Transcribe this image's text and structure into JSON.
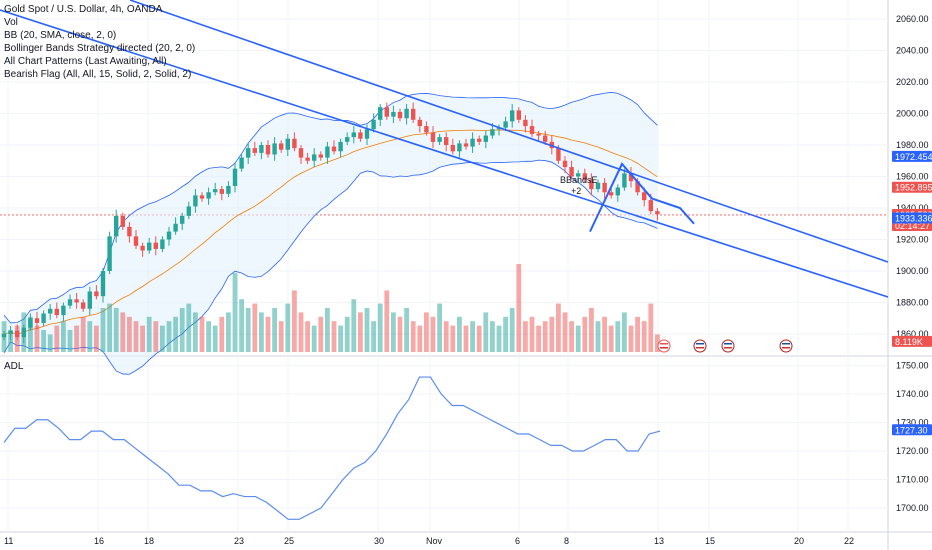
{
  "legend": {
    "title": "Gold Spot / U.S. Dollar, 4h, OANDA",
    "line2": "Vol",
    "line3": "BB (20, SMA, close, 2, 0)",
    "line4": "Bollinger Bands Strategy directed (20, 2, 0)",
    "line5": "All Chart Patterns (Last Awaiting, All)",
    "line6": "Bearish Flag (All, All, 15, Solid, 2, Solid, 2)"
  },
  "adl_label": "ADL",
  "colors": {
    "up": "#26a69a",
    "down": "#ef5350",
    "bb": "#2962ff",
    "bb_fill": "#e3f2fd",
    "basis": "#f57c00",
    "trend": "#2962ff",
    "adl": "#5b8def",
    "grid": "#f0f3fa"
  },
  "chart_data": [
    {
      "type": "candlestick",
      "symbol": "Gold Spot / U.S. Dollar",
      "timeframe": "4h",
      "yticks": [
        1860,
        1880,
        1900,
        1920,
        1940,
        1960,
        1980,
        2000,
        2020,
        2040,
        2060
      ],
      "ylim": [
        1853,
        2067
      ],
      "xticks": [
        "11",
        "16",
        "18",
        "23",
        "25",
        "30",
        "Nov",
        "6",
        "8",
        "13",
        "15",
        "20",
        "22"
      ],
      "price_labels": [
        {
          "label": "1972.454",
          "value": 1972.454,
          "color": "#2962ff"
        },
        {
          "label": "1952.895",
          "value": 1952.895,
          "color": "#ef5350"
        },
        {
          "label": "1935.580",
          "sub": "02:14:27",
          "value": 1935.58,
          "color": "#ef5350"
        },
        {
          "label": "1933.336",
          "value": 1933.336,
          "color": "#2962ff"
        },
        {
          "label": "8.119K",
          "value": 1855,
          "color": "#ef5350"
        }
      ],
      "current_price": 1935.58,
      "annotation": {
        "label": "BBandsE",
        "sub": "+2"
      },
      "close": [
        1860,
        1862,
        1858,
        1864,
        1870,
        1867,
        1873,
        1876,
        1872,
        1878,
        1882,
        1880,
        1876,
        1887,
        1884,
        1900,
        1922,
        1935,
        1928,
        1922,
        1916,
        1913,
        1918,
        1914,
        1920,
        1925,
        1930,
        1935,
        1941,
        1948,
        1946,
        1950,
        1952,
        1949,
        1954,
        1965,
        1972,
        1978,
        1975,
        1980,
        1974,
        1981,
        1977,
        1984,
        1978,
        1972,
        1970,
        1974,
        1972,
        1979,
        1976,
        1982,
        1985,
        1988,
        1984,
        1990,
        1996,
        2004,
        1998,
        2001,
        1997,
        2003,
        1996,
        1992,
        1988,
        1982,
        1985,
        1980,
        1976,
        1981,
        1979,
        1984,
        1982,
        1986,
        1990,
        1991,
        1995,
        2002,
        1996,
        1992,
        1987,
        1986,
        1982,
        1978,
        1970,
        1966,
        1960,
        1962,
        1958,
        1952,
        1956,
        1950,
        1948,
        1953,
        1962,
        1957,
        1950,
        1945,
        1938,
        1936
      ],
      "volume_max": 1,
      "volume": [
        0.35,
        0.25,
        0.3,
        0.45,
        0.4,
        0.3,
        0.25,
        0.2,
        0.3,
        0.35,
        0.25,
        0.3,
        0.4,
        0.35,
        0.3,
        0.5,
        0.55,
        0.5,
        0.45,
        0.4,
        0.35,
        0.3,
        0.4,
        0.35,
        0.3,
        0.35,
        0.4,
        0.5,
        0.55,
        0.45,
        0.4,
        0.35,
        0.3,
        0.4,
        0.45,
        0.9,
        0.6,
        0.5,
        0.55,
        0.45,
        0.4,
        0.5,
        0.35,
        0.55,
        0.7,
        0.45,
        0.35,
        0.3,
        0.4,
        0.5,
        0.35,
        0.3,
        0.4,
        0.6,
        0.45,
        0.5,
        0.35,
        0.55,
        0.7,
        0.45,
        0.4,
        0.5,
        0.35,
        0.3,
        0.45,
        0.4,
        0.55,
        0.35,
        0.3,
        0.4,
        0.3,
        0.35,
        0.3,
        0.45,
        0.35,
        0.3,
        0.4,
        0.5,
        1.0,
        0.35,
        0.4,
        0.3,
        0.35,
        0.4,
        0.55,
        0.45,
        0.35,
        0.3,
        0.4,
        0.5,
        0.35,
        0.4,
        0.3,
        0.35,
        0.45,
        0.3,
        0.4,
        0.35,
        0.55,
        0.2
      ],
      "bearish_flag": [
        [
          1935,
          1925
        ],
        [
          1963,
          1968
        ],
        [
          1938,
          1946
        ],
        [
          1963,
          1940
        ],
        [
          1960,
          1930
        ]
      ]
    },
    {
      "type": "line",
      "name": "ADL",
      "yticks": [
        1700,
        1710,
        1720,
        1730,
        1740,
        1750
      ],
      "ylim": [
        1694,
        1752
      ],
      "last_label": "1727.30",
      "values": [
        1723,
        1728,
        1728,
        1731,
        1731,
        1728,
        1724,
        1724,
        1727,
        1727,
        1724,
        1724,
        1721,
        1718,
        1715,
        1712,
        1708,
        1708,
        1706,
        1706,
        1704,
        1705,
        1704,
        1704,
        1702,
        1699,
        1696,
        1696,
        1698,
        1700,
        1705,
        1710,
        1714,
        1716,
        1720,
        1726,
        1733,
        1738,
        1746,
        1746,
        1740,
        1736,
        1736,
        1734,
        1732,
        1730,
        1728,
        1726,
        1726,
        1724,
        1722,
        1722,
        1720,
        1720,
        1722,
        1724,
        1724,
        1720,
        1720,
        1726,
        1727
      ]
    }
  ]
}
